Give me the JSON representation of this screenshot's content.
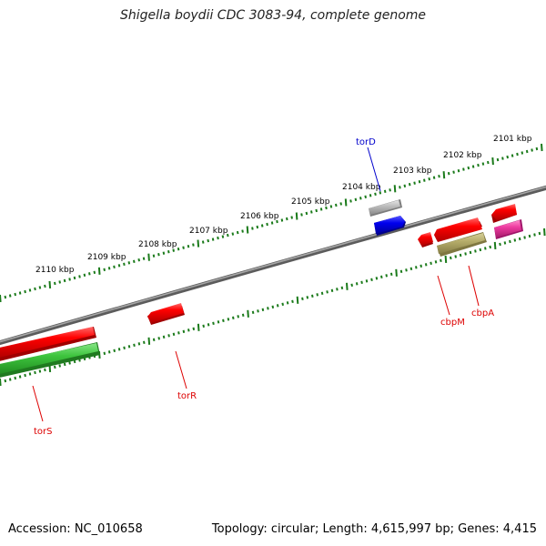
{
  "header": {
    "title": "Shigella boydii CDC 3083-94, complete genome"
  },
  "footer": {
    "accession": "Accession: NC_010658",
    "summary": "Topology: circular; Length: 4,615,997 bp; Genes: 4,415"
  },
  "colors": {
    "backbone": "#7a7a7a",
    "tick": "#1a7a1a",
    "red": "#ff0000",
    "green": "#3ec43e",
    "blue": "#0000ee",
    "gray": "#b8b8b8",
    "olive": "#b5ac6a",
    "pink": "#ee3aa0"
  },
  "map": {
    "scale_labels": [
      "2101 kbp",
      "2102 kbp",
      "2103 kbp",
      "2104 kbp",
      "2105 kbp",
      "2106 kbp",
      "2107 kbp",
      "2108 kbp",
      "2109 kbp",
      "2110 kbp"
    ],
    "gene_labels": [
      {
        "name": "torD",
        "color": "#0000cc"
      },
      {
        "name": "cbpM",
        "color": "#dd0000"
      },
      {
        "name": "cbpA",
        "color": "#dd0000"
      },
      {
        "name": "torR",
        "color": "#dd0000"
      },
      {
        "name": "torS",
        "color": "#dd0000"
      }
    ],
    "features": [
      {
        "gene": "torD",
        "color": "blue"
      },
      {
        "gene": "torD-product",
        "color": "gray"
      },
      {
        "gene": "cbpM",
        "color": "red"
      },
      {
        "gene": "cbpA",
        "color": "red"
      },
      {
        "gene": "cbpA-product",
        "color": "olive"
      },
      {
        "gene": "feature-far-right",
        "color": "red"
      },
      {
        "gene": "feature-far-right-product",
        "color": "pink"
      },
      {
        "gene": "torR",
        "color": "red"
      },
      {
        "gene": "torS",
        "color": "red"
      },
      {
        "gene": "torS-product",
        "color": "green"
      }
    ]
  }
}
